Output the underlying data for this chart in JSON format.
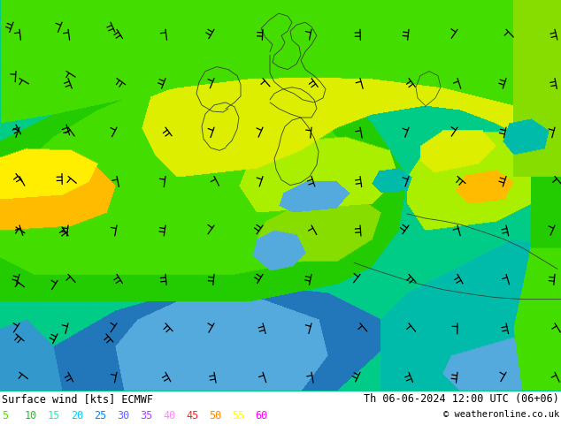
{
  "title_left": "Surface wind [kts] ECMWF",
  "title_right": "Th 06-06-2024 12:00 UTC (06+06)",
  "copyright": "© weatheronline.co.uk",
  "colorbar_labels": [
    "5",
    "10",
    "15",
    "20",
    "25",
    "30",
    "35",
    "40",
    "45",
    "50",
    "55",
    "60"
  ],
  "legend_colors": [
    "#55dd00",
    "#00dd00",
    "#00ffaa",
    "#00ccff",
    "#0088ff",
    "#6666ff",
    "#aa44ff",
    "#ff88ff",
    "#ff2222",
    "#ff8800",
    "#ffff00",
    "#ff00ff"
  ],
  "fig_width": 6.34,
  "fig_height": 4.9,
  "dpi": 100,
  "wind_colors": [
    "#33cc00",
    "#44dd00",
    "#66ee00",
    "#88cc00",
    "#aadd00",
    "#ccee00",
    "#00ddaa",
    "#00bbff",
    "#0077ff",
    "#ffcc00",
    "#ff8800",
    "#ff4400"
  ],
  "bg_ocean_color": "#00ccaa",
  "bg_land_color": "#44dd00"
}
